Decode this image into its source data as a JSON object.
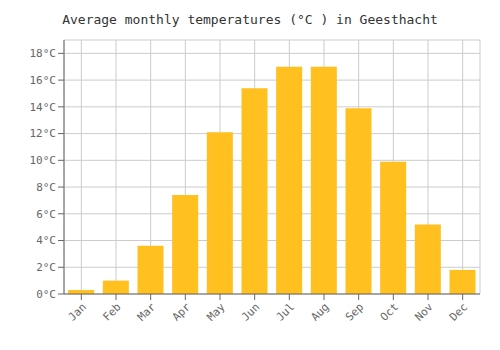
{
  "chart_data": {
    "type": "bar",
    "title": "Average monthly temperatures (°C ) in Geesthacht",
    "categories": [
      "Jan",
      "Feb",
      "Mar",
      "Apr",
      "May",
      "Jun",
      "Jul",
      "Aug",
      "Sep",
      "Oct",
      "Nov",
      "Dec"
    ],
    "values": [
      0.3,
      1.0,
      3.6,
      7.4,
      12.1,
      15.4,
      17.0,
      17.0,
      13.9,
      9.9,
      5.2,
      1.8
    ],
    "color": "#FFC020",
    "ylim": [
      0,
      19.0
    ],
    "yticks": [
      {
        "value": 0,
        "label": "0°C"
      },
      {
        "value": 2,
        "label": "2°C"
      },
      {
        "value": 4,
        "label": "4°C"
      },
      {
        "value": 6,
        "label": "6°C"
      },
      {
        "value": 8,
        "label": "8°C"
      },
      {
        "value": 10,
        "label": "10°C"
      },
      {
        "value": 12,
        "label": "12°C"
      },
      {
        "value": 14,
        "label": "14°C"
      },
      {
        "value": 16,
        "label": "16°C"
      },
      {
        "value": 18,
        "label": "18°C"
      }
    ],
    "grid": true
  }
}
